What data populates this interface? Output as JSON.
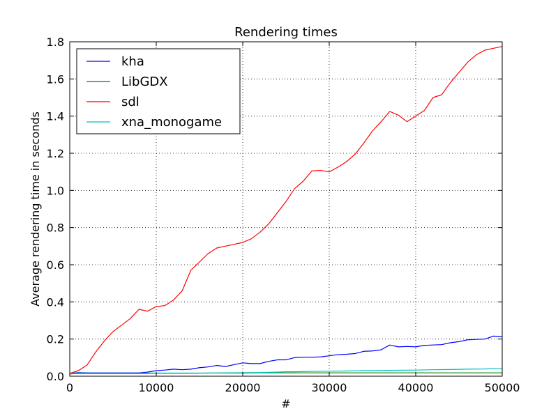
{
  "chart_data": {
    "type": "line",
    "title": "Rendering times",
    "xlabel": "#",
    "ylabel": "Average rendering time in seconds",
    "xlim": [
      0,
      50000
    ],
    "ylim": [
      0,
      1.8
    ],
    "xticks": [
      0,
      10000,
      20000,
      30000,
      40000,
      50000
    ],
    "yticks": [
      0.0,
      0.2,
      0.4,
      0.6,
      0.8,
      1.0,
      1.2,
      1.4,
      1.6,
      1.8
    ],
    "xtick_labels": [
      "0",
      "10000",
      "20000",
      "30000",
      "40000",
      "50000"
    ],
    "ytick_labels": [
      "0.0",
      "0.2",
      "0.4",
      "0.6",
      "0.8",
      "1.0",
      "1.2",
      "1.4",
      "1.6",
      "1.8"
    ],
    "grid": true,
    "legend_position": "top-left",
    "series": [
      {
        "name": "kha",
        "color": "#0000ff",
        "x": [
          0,
          1000,
          2000,
          3000,
          4000,
          5000,
          6000,
          7000,
          8000,
          9000,
          10000,
          11000,
          12000,
          13000,
          14000,
          15000,
          16000,
          17000,
          18000,
          19000,
          20000,
          21000,
          22000,
          23000,
          24000,
          25000,
          26000,
          27000,
          28000,
          29000,
          30000,
          31000,
          32000,
          33000,
          34000,
          35000,
          36000,
          37000,
          38000,
          39000,
          40000,
          41000,
          42000,
          43000,
          44000,
          45000,
          46000,
          47000,
          48000,
          49000,
          50000
        ],
        "y": [
          0.015,
          0.02,
          0.018,
          0.018,
          0.018,
          0.018,
          0.018,
          0.018,
          0.018,
          0.022,
          0.03,
          0.033,
          0.038,
          0.035,
          0.038,
          0.046,
          0.05,
          0.058,
          0.052,
          0.062,
          0.072,
          0.068,
          0.068,
          0.08,
          0.088,
          0.088,
          0.1,
          0.102,
          0.102,
          0.104,
          0.11,
          0.116,
          0.118,
          0.122,
          0.134,
          0.136,
          0.142,
          0.168,
          0.158,
          0.16,
          0.158,
          0.166,
          0.168,
          0.17,
          0.18,
          0.186,
          0.196,
          0.198,
          0.2,
          0.216,
          0.212
        ]
      },
      {
        "name": "LibGDX",
        "color": "#008000",
        "x": [
          0,
          1000,
          2000,
          3000,
          4000,
          5000,
          6000,
          7000,
          8000,
          9000,
          10000,
          12000,
          14000,
          16000,
          18000,
          20000,
          22000,
          24000,
          26000,
          28000,
          30000,
          32000,
          34000,
          36000,
          38000,
          40000,
          42000,
          44000,
          46000,
          48000,
          50000
        ],
        "y": [
          0.012,
          0.015,
          0.014,
          0.014,
          0.014,
          0.014,
          0.014,
          0.014,
          0.014,
          0.015,
          0.016,
          0.016,
          0.016,
          0.017,
          0.017,
          0.017,
          0.018,
          0.018,
          0.018,
          0.018,
          0.018,
          0.018,
          0.018,
          0.018,
          0.018,
          0.018,
          0.018,
          0.018,
          0.018,
          0.018,
          0.018
        ]
      },
      {
        "name": "sdl",
        "color": "#ff0000",
        "x": [
          0,
          1000,
          2000,
          3000,
          4000,
          5000,
          6000,
          7000,
          8000,
          9000,
          10000,
          11000,
          12000,
          13000,
          14000,
          15000,
          16000,
          17000,
          18000,
          19000,
          20000,
          21000,
          22000,
          23000,
          24000,
          25000,
          26000,
          27000,
          28000,
          29000,
          30000,
          31000,
          32000,
          33000,
          34000,
          35000,
          36000,
          37000,
          38000,
          39000,
          40000,
          41000,
          42000,
          43000,
          44000,
          45000,
          46000,
          47000,
          48000,
          49000,
          50000
        ],
        "y": [
          0.015,
          0.03,
          0.06,
          0.13,
          0.19,
          0.24,
          0.275,
          0.31,
          0.36,
          0.35,
          0.375,
          0.38,
          0.41,
          0.46,
          0.57,
          0.615,
          0.66,
          0.69,
          0.7,
          0.71,
          0.72,
          0.74,
          0.775,
          0.82,
          0.88,
          0.94,
          1.01,
          1.05,
          1.105,
          1.108,
          1.1,
          1.125,
          1.155,
          1.195,
          1.255,
          1.32,
          1.37,
          1.425,
          1.405,
          1.37,
          1.4,
          1.43,
          1.5,
          1.515,
          1.58,
          1.635,
          1.69,
          1.73,
          1.755,
          1.765,
          1.775
        ]
      },
      {
        "name": "xna_monogame",
        "color": "#00bfbf",
        "x": [
          0,
          1000,
          2000,
          3000,
          4000,
          5000,
          6000,
          7000,
          8000,
          9000,
          10000,
          12000,
          14000,
          16000,
          18000,
          20000,
          22000,
          24000,
          25000,
          26000,
          28000,
          30000,
          32000,
          34000,
          35000,
          36000,
          38000,
          40000,
          42000,
          44000,
          46000,
          48000,
          49000,
          50000
        ],
        "y": [
          0.015,
          0.018,
          0.016,
          0.016,
          0.016,
          0.016,
          0.016,
          0.016,
          0.016,
          0.017,
          0.017,
          0.017,
          0.017,
          0.017,
          0.018,
          0.019,
          0.02,
          0.022,
          0.024,
          0.024,
          0.026,
          0.027,
          0.028,
          0.03,
          0.03,
          0.031,
          0.032,
          0.033,
          0.035,
          0.036,
          0.038,
          0.039,
          0.041,
          0.041
        ]
      }
    ]
  }
}
